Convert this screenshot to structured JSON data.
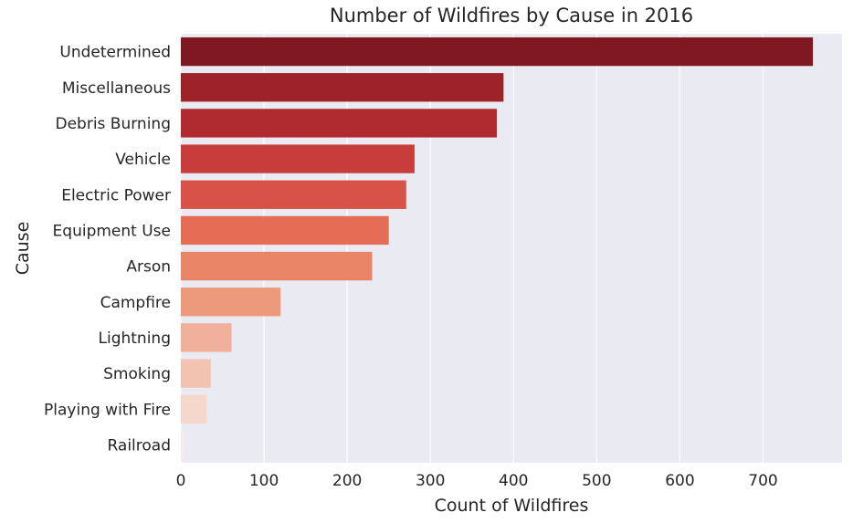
{
  "chart_data": {
    "type": "bar",
    "orientation": "horizontal",
    "title": "Number of Wildfires by Cause in 2016",
    "xlabel": "Count of Wildfires",
    "ylabel": "Cause",
    "categories": [
      "Undetermined",
      "Miscellaneous",
      "Debris Burning",
      "Vehicle",
      "Electric Power",
      "Equipment Use",
      "Arson",
      "Campfire",
      "Lightning",
      "Smoking",
      "Playing with Fire",
      "Railroad"
    ],
    "values": [
      760,
      388,
      380,
      281,
      271,
      250,
      230,
      120,
      61,
      36,
      31,
      3
    ],
    "colors": [
      "#7f1820",
      "#9e2328",
      "#b02b30",
      "#c83c3b",
      "#d95248",
      "#e56d55",
      "#ea8466",
      "#ed9a7c",
      "#f0b09b",
      "#f3c3b1",
      "#f6d7cb",
      "#fbe9e3"
    ],
    "xticks": [
      0,
      100,
      200,
      300,
      400,
      500,
      600,
      700
    ],
    "xlim": [
      0,
      795
    ],
    "grid": true,
    "background": "#eaeaf2"
  }
}
